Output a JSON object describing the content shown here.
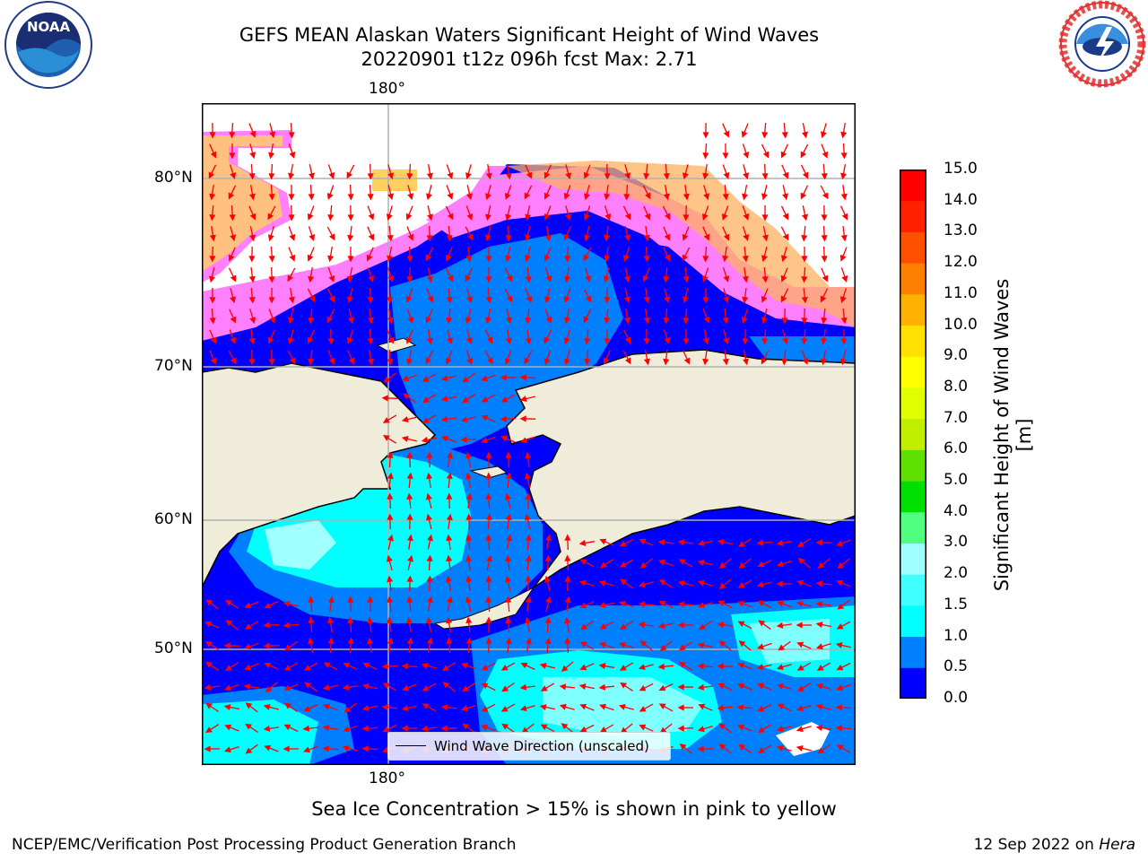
{
  "title": {
    "line1": "GEFS MEAN Alaskan Waters Significant Height of Wind Waves",
    "line2": "20220901 t12z 096h fcst   Max: 2.71"
  },
  "map": {
    "lon_label_top": "180°",
    "lon_label_bottom": "180°",
    "lat_labels": [
      "80°N",
      "70°N",
      "60°N",
      "50°N"
    ],
    "legend_label": "Wind Wave Direction (unscaled)",
    "land_color": "#efedd9",
    "grid_color": "#b0b0b0",
    "arrow_color": "#ff0000"
  },
  "colorbar": {
    "label": "Significant Height of Wind Waves [m]",
    "ticks": [
      "0.0",
      "0.5",
      "1.0",
      "1.5",
      "2.0",
      "3.0",
      "4.0",
      "5.0",
      "6.0",
      "7.0",
      "8.0",
      "9.0",
      "10.0",
      "11.0",
      "12.0",
      "13.0",
      "14.0",
      "15.0"
    ],
    "colors": [
      "#0000ff",
      "#0080ff",
      "#00ffff",
      "#40ffff",
      "#a0ffff",
      "#50ff80",
      "#00e000",
      "#60e000",
      "#c0f000",
      "#e0ff00",
      "#ffff00",
      "#ffe000",
      "#ffb000",
      "#ff8000",
      "#ff5000",
      "#ff2000",
      "#ff0000"
    ]
  },
  "sea_ice_note": "Sea Ice Concentration > 15% is shown in pink to yellow",
  "footer": {
    "credit": "NCEP/EMC/Verification Post Processing Product Generation Branch",
    "date": "12 Sep 2022 on",
    "host": "Hera"
  },
  "logos": {
    "noaa_text": "NOAA",
    "nws_text": "NATIONAL WEATHER SERVICE"
  }
}
